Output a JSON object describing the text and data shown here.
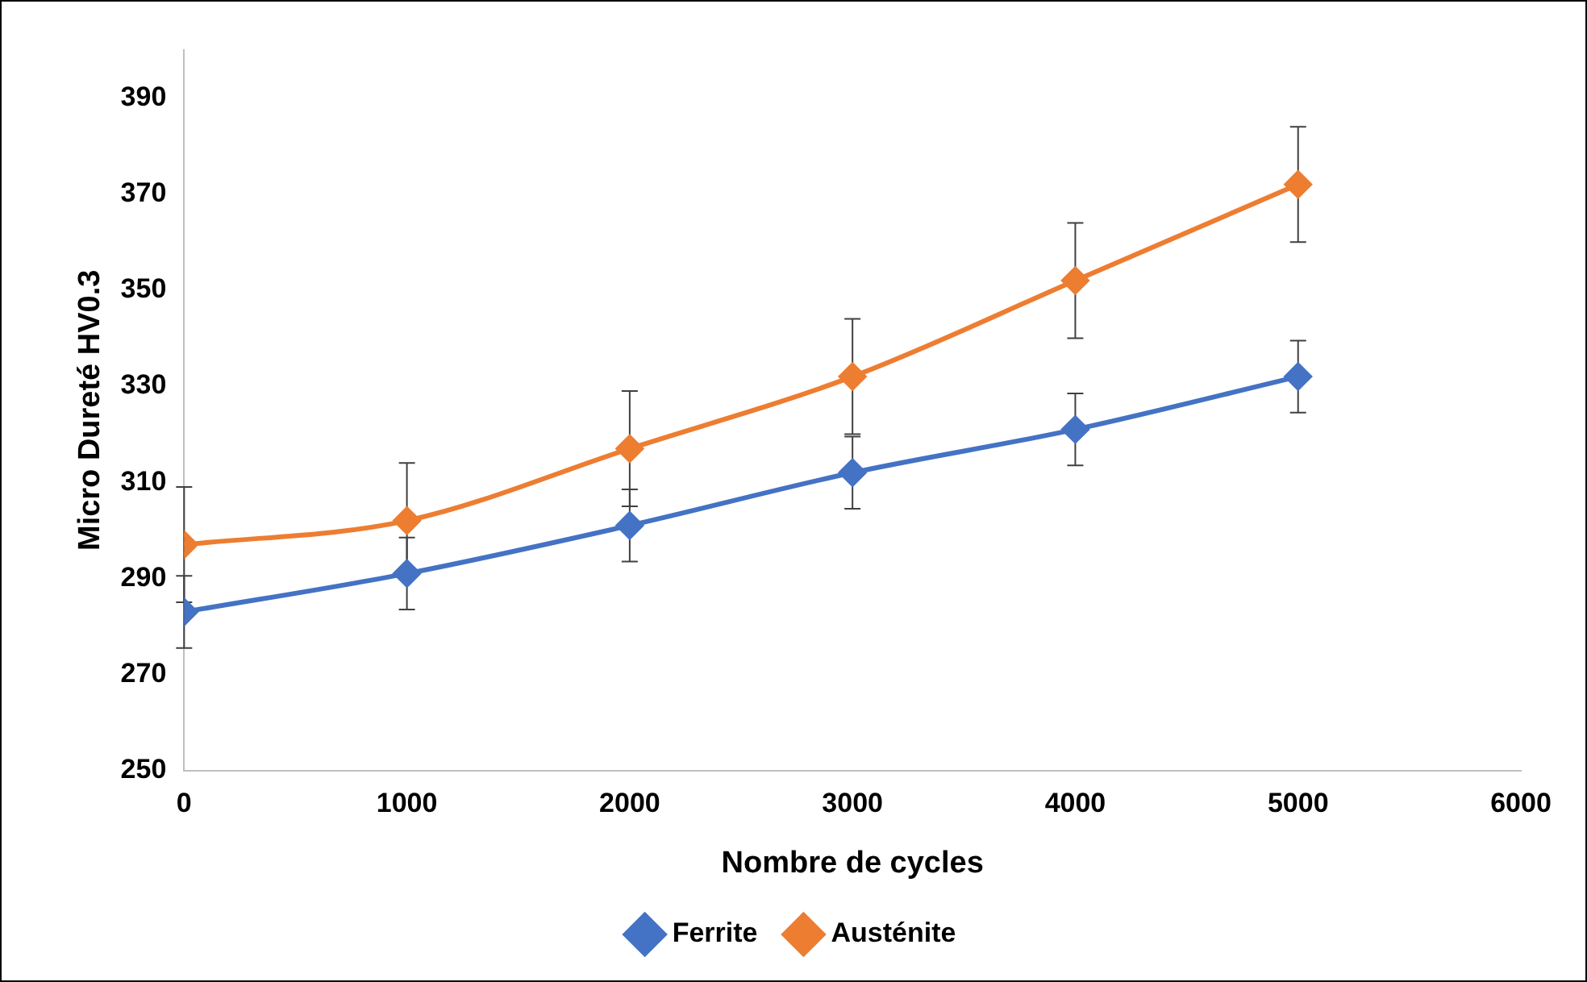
{
  "chart_data": {
    "type": "line",
    "xlabel": "Nombre de cycles",
    "ylabel": "Micro Dureté HV0.3",
    "x": [
      0,
      1000,
      2000,
      3000,
      4000,
      5000
    ],
    "series": [
      {
        "name": "Ferrite",
        "color": "#4472c4",
        "values": [
          283,
          291,
          301,
          312,
          321,
          332
        ],
        "errors": [
          7.5,
          7.5,
          7.5,
          7.5,
          7.5,
          7.5
        ]
      },
      {
        "name": "Austénite",
        "color": "#ed7d31",
        "values": [
          297,
          302,
          317,
          332,
          352,
          372
        ],
        "errors": [
          12,
          12,
          12,
          12,
          12,
          12
        ]
      }
    ],
    "xlim": [
      0,
      6000
    ],
    "xticks": [
      0,
      1000,
      2000,
      3000,
      4000,
      5000,
      6000
    ],
    "ylim": [
      250,
      400
    ],
    "yticks": [
      250,
      270,
      290,
      310,
      330,
      350,
      370,
      390
    ],
    "grid": false,
    "legend": "bottom",
    "marker": "diamond",
    "line_style": "solid"
  }
}
